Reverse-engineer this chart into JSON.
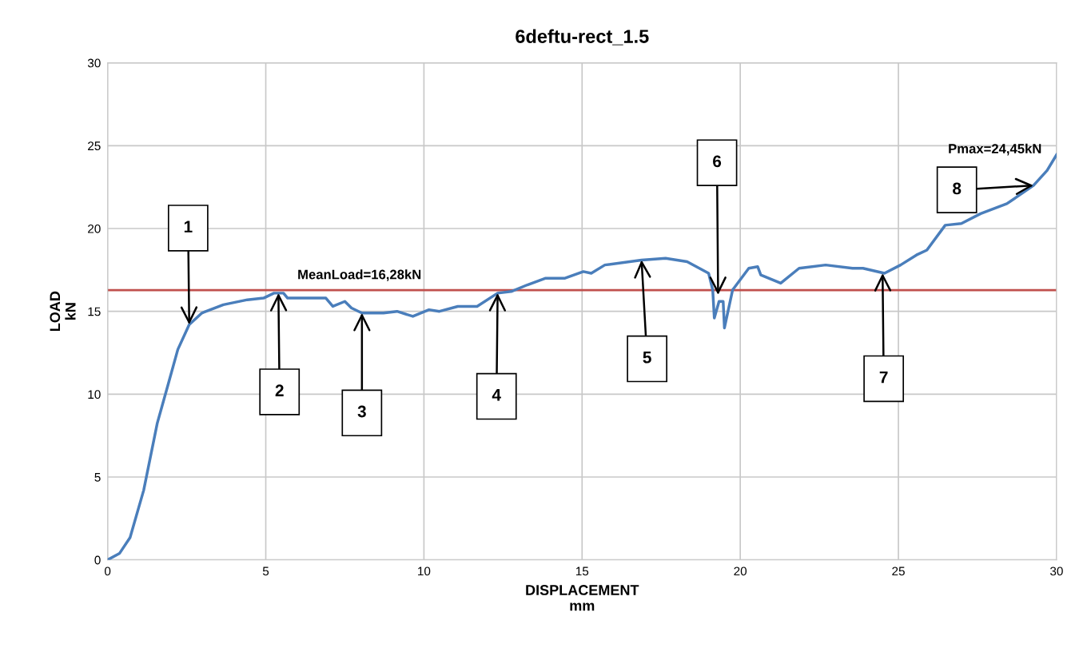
{
  "chart_data": {
    "type": "line",
    "title": "6deftu-rect_1.5",
    "xlabel": "DISPLACEMENT\nmm",
    "ylabel": "LOAD\nkN",
    "x": [
      0,
      0.38,
      0.71,
      1.14,
      1.57,
      1.9,
      2.22,
      2.58,
      2.98,
      3.66,
      4.42,
      4.93,
      5.26,
      5.56,
      5.69,
      6.27,
      6.9,
      7.12,
      7.5,
      7.71,
      8.04,
      8.72,
      9.15,
      9.65,
      10.16,
      10.49,
      11.07,
      11.68,
      12.33,
      12.76,
      13.27,
      13.85,
      14.46,
      15.04,
      15.29,
      15.72,
      16.88,
      17.64,
      18.32,
      19.0,
      19.13,
      19.18,
      19.33,
      19.46,
      19.5,
      19.76,
      20.27,
      20.55,
      20.65,
      21.28,
      21.86,
      22.7,
      23.55,
      23.88,
      24.56,
      25.07,
      25.57,
      25.9,
      26.48,
      26.99,
      27.6,
      28.43,
      29.27,
      29.7,
      30.0
    ],
    "series": [
      {
        "color": "#4a7ebb",
        "values": [
          0,
          0.4,
          1.35,
          4.2,
          8.25,
          10.5,
          12.7,
          14.2,
          14.9,
          15.4,
          15.7,
          15.8,
          16.1,
          16.1,
          15.8,
          15.8,
          15.8,
          15.3,
          15.6,
          15.2,
          14.9,
          14.9,
          15.0,
          14.7,
          15.1,
          15.0,
          15.3,
          15.3,
          16.1,
          16.2,
          16.6,
          17.0,
          17.0,
          17.4,
          17.3,
          17.8,
          18.1,
          18.2,
          18.0,
          17.3,
          16.3,
          14.6,
          15.6,
          15.6,
          14.0,
          16.3,
          17.6,
          17.7,
          17.2,
          16.7,
          17.6,
          17.8,
          17.6,
          17.6,
          17.3,
          17.8,
          18.4,
          18.7,
          20.2,
          20.3,
          20.9,
          21.5,
          22.6,
          23.5,
          24.45
        ]
      }
    ],
    "xlim": [
      0,
      30
    ],
    "ylim": [
      0,
      30
    ],
    "xticks": [
      0,
      5,
      10,
      15,
      20,
      25,
      30
    ],
    "yticks": [
      0,
      5,
      10,
      15,
      20,
      25,
      30
    ],
    "grid": true,
    "marker": "none",
    "line_style": "solid",
    "ref_lines": [
      {
        "axis": "y",
        "value": 16.28,
        "label": "MeanLoad=16,28kN",
        "color": "#c0504d"
      }
    ],
    "annotations": [
      {
        "text": "1",
        "x": 2.58,
        "y": 14.2
      },
      {
        "text": "2",
        "x": 5.4,
        "y": 16.1
      },
      {
        "text": "3",
        "x": 8.04,
        "y": 14.9
      },
      {
        "text": "4",
        "x": 12.33,
        "y": 16.1
      },
      {
        "text": "5",
        "x": 16.88,
        "y": 18.1
      },
      {
        "text": "6",
        "x": 19.3,
        "y": 16.0
      },
      {
        "text": "7",
        "x": 24.5,
        "y": 17.3
      },
      {
        "text": "8",
        "x": 29.27,
        "y": 22.6
      },
      "Pmax=24,45kN"
    ]
  }
}
